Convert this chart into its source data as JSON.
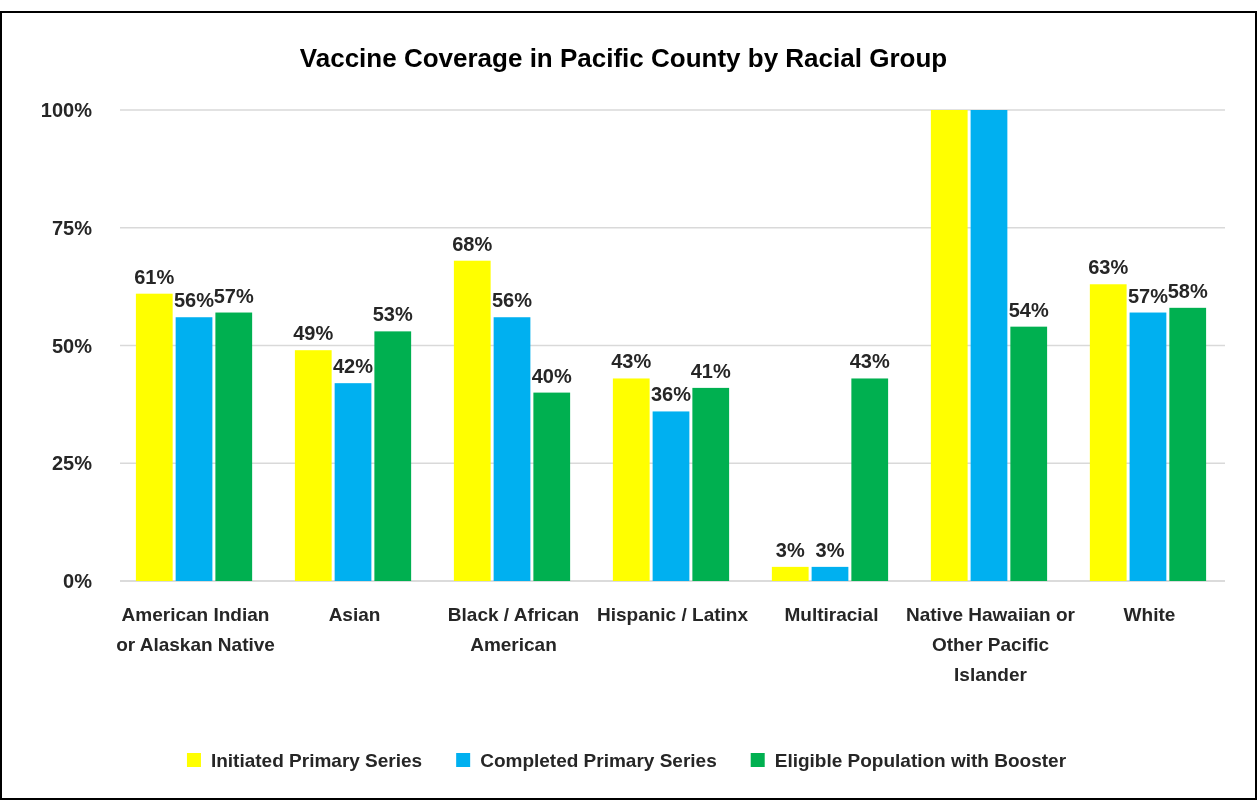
{
  "chart_data": {
    "type": "bar",
    "title": "Vaccine Coverage in Pacific County by Racial Group",
    "categories": [
      "American Indian or Alaskan Native",
      "Asian",
      "Black / African American",
      "Hispanic / Latinx",
      "Multiracial",
      "Native Hawaiian or Other Pacific Islander",
      "White"
    ],
    "series": [
      {
        "name": "Initiated Primary Series",
        "color": "#ffff00",
        "values": [
          61,
          49,
          68,
          43,
          3,
          100,
          63
        ],
        "value_labels": [
          "61%",
          "49%",
          "68%",
          "43%",
          "3%",
          null,
          "63%"
        ]
      },
      {
        "name": "Completed Primary Series",
        "color": "#00b0f0",
        "values": [
          56,
          42,
          56,
          36,
          3,
          100,
          57
        ],
        "value_labels": [
          "56%",
          "42%",
          "56%",
          "36%",
          "3%",
          null,
          "57%"
        ]
      },
      {
        "name": "Eligible Population with Booster",
        "color": "#00b050",
        "values": [
          57,
          53,
          40,
          41,
          43,
          54,
          58
        ],
        "value_labels": [
          "57%",
          "53%",
          "40%",
          "41%",
          "43%",
          "54%",
          "58%"
        ]
      }
    ],
    "ylim": [
      0,
      100
    ],
    "yticks": [
      {
        "value": 0,
        "label": "0%"
      },
      {
        "value": 25,
        "label": "25%"
      },
      {
        "value": 50,
        "label": "50%"
      },
      {
        "value": 75,
        "label": "75%"
      },
      {
        "value": 100,
        "label": "100%"
      }
    ],
    "grid": "y",
    "legend": "bottom"
  }
}
